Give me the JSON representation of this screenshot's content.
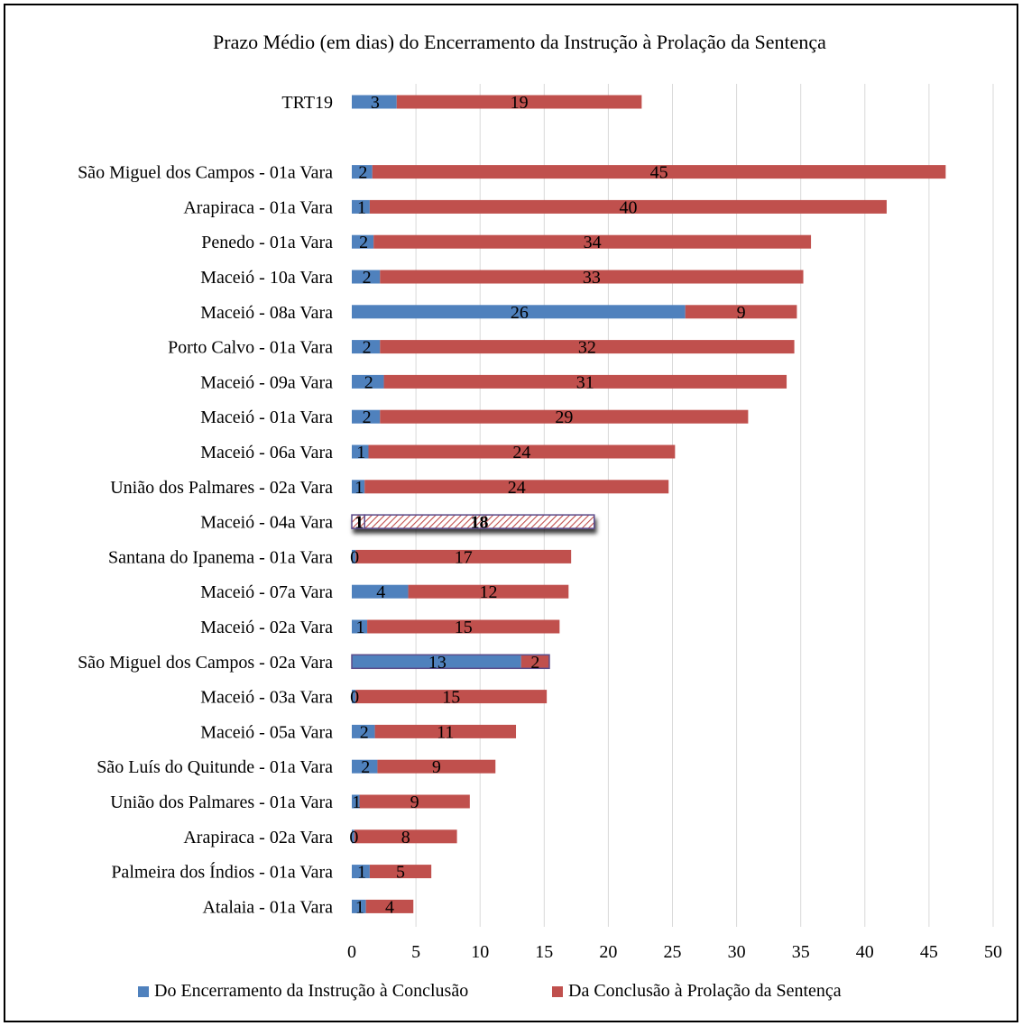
{
  "chart_data": {
    "type": "bar",
    "orientation": "horizontal",
    "stacked": true,
    "title": "Prazo Médio (em dias) do Encerramento da Instrução à Prolação da Sentença",
    "xlabel": "",
    "ylabel": "",
    "xlim": [
      0,
      50
    ],
    "xticks": [
      0,
      5,
      10,
      15,
      20,
      25,
      30,
      35,
      40,
      45,
      50
    ],
    "grid": "vertical",
    "legend_position": "bottom",
    "categories": [
      "TRT19",
      "",
      "São Miguel dos Campos - 01a Vara",
      "Arapiraca - 01a Vara",
      "Penedo - 01a Vara",
      "Maceió - 10a Vara",
      "Maceió - 08a Vara",
      "Porto Calvo - 01a Vara",
      "Maceió - 09a Vara",
      "Maceió - 01a Vara",
      "Maceió - 06a Vara",
      "União dos Palmares - 02a Vara",
      "Maceió - 04a Vara",
      "Santana do Ipanema - 01a Vara",
      "Maceió - 07a Vara",
      "Maceió - 02a Vara",
      "São Miguel dos Campos - 02a Vara",
      "Maceió - 03a Vara",
      "Maceió - 05a Vara",
      "São Luís do Quitunde - 01a Vara",
      "União dos Palmares - 01a Vara",
      "Arapiraca - 02a Vara",
      "Palmeira dos Índios - 01a Vara",
      "Atalaia - 01a Vara"
    ],
    "series": [
      {
        "name": "Do Encerramento da Instrução à Conclusão",
        "color": "#4F81BD",
        "values": [
          3.5,
          null,
          1.6,
          1.4,
          1.7,
          2.2,
          26,
          2.2,
          2.5,
          2.2,
          1.3,
          1.0,
          1.0,
          0.3,
          4.4,
          1.2,
          13.2,
          0.3,
          1.8,
          2.0,
          0.6,
          0.2,
          1.4,
          1.1
        ],
        "labels": [
          "3",
          "",
          "2",
          "1",
          "2",
          "2",
          "26",
          "2",
          "2",
          "2",
          "1",
          "1",
          "1",
          "0",
          "4",
          "1",
          "13",
          "0",
          "2",
          "2",
          "1",
          "0",
          "1",
          "1"
        ]
      },
      {
        "name": "Da Conclusão à Prolação da Sentença",
        "color": "#C0504D",
        "values": [
          19.1,
          null,
          44.7,
          40.3,
          34.1,
          33.0,
          8.7,
          32.3,
          31.4,
          28.7,
          23.9,
          23.7,
          17.9,
          16.8,
          12.5,
          15.0,
          2.2,
          14.9,
          11.0,
          9.2,
          8.6,
          8.0,
          4.8,
          3.7
        ],
        "labels": [
          "19",
          "",
          "45",
          "40",
          "34",
          "33",
          "9",
          "32",
          "31",
          "29",
          "24",
          "24",
          "18",
          "17",
          "12",
          "15",
          "2",
          "15",
          "11",
          "9",
          "9",
          "8",
          "5",
          "4"
        ]
      }
    ],
    "highlight": [
      "Maceió - 04a Vara"
    ]
  }
}
